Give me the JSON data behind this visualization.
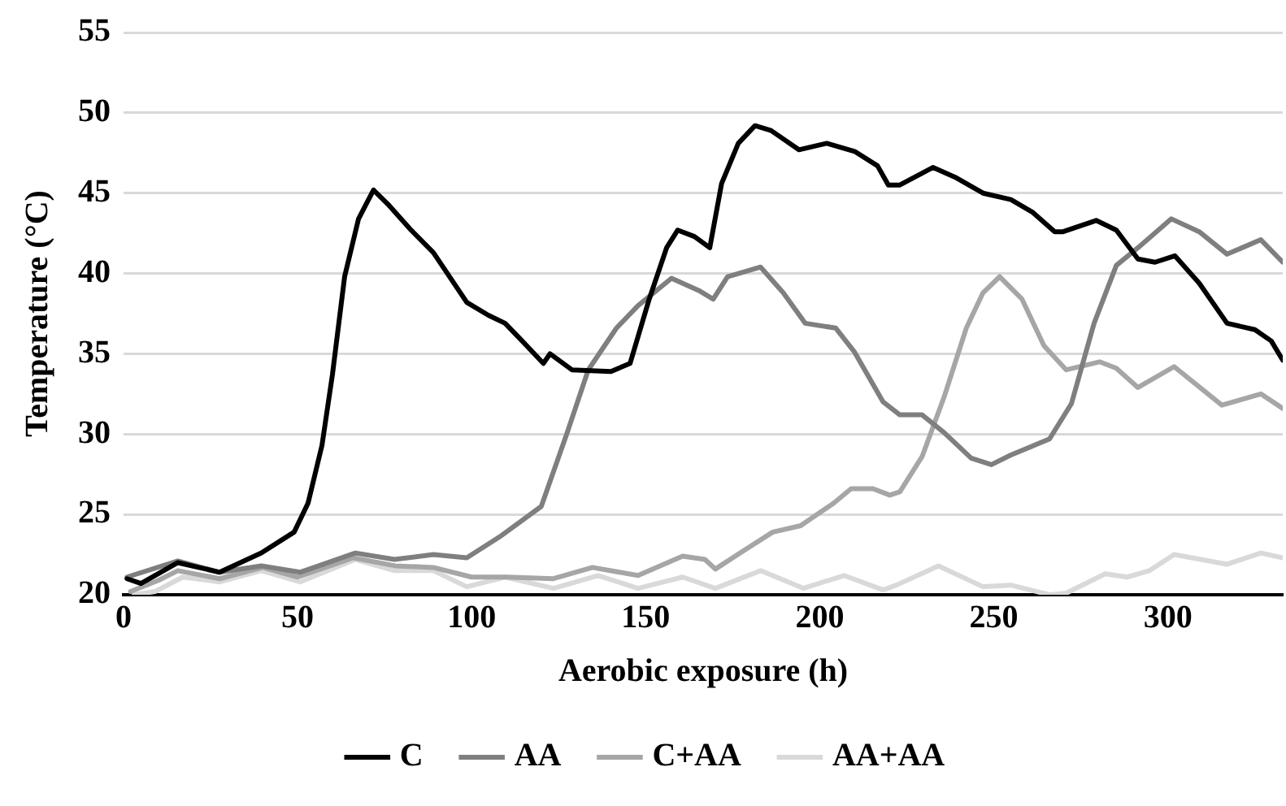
{
  "chart_data": {
    "type": "line",
    "xlabel": "Aerobic exposure (h)",
    "ylabel": "Temperature (°C)",
    "xlim": [
      0,
      333
    ],
    "xticks": [
      0,
      50,
      100,
      150,
      200,
      250,
      300
    ],
    "ylim": [
      20,
      55
    ],
    "yticks": [
      20,
      25,
      30,
      35,
      40,
      45,
      50,
      55
    ],
    "grid": "y",
    "legend": "bottom",
    "marker": "none",
    "line_style": "solid",
    "series": [
      {
        "name": "C",
        "color": "#000000",
        "x": [
          1,
          5,
          15.6,
          27.6,
          39.6,
          49,
          53,
          57,
          60,
          63.5,
          67.5,
          71.8,
          76,
          82.6,
          89,
          98.6,
          104.8,
          109.6,
          114.5,
          120.6,
          122.5,
          128.8,
          140,
          145.5,
          151,
          156,
          159.2,
          164,
          168.4,
          171.8,
          176.6,
          181.4,
          186,
          194,
          202,
          210,
          216.6,
          219.7,
          222.9,
          232.5,
          238.8,
          246.9,
          254.9,
          261.2,
          267.5,
          269.9,
          279.4,
          285.2,
          291.4,
          296.3,
          302,
          309,
          317,
          325,
          329.7,
          333
        ],
        "values": [
          21,
          20.7,
          22,
          21.4,
          22.6,
          23.9,
          25.7,
          29.3,
          33.7,
          39.8,
          43.4,
          45.2,
          44.3,
          42.7,
          41.3,
          38.2,
          37.4,
          36.9,
          35.8,
          34.4,
          35,
          34,
          33.9,
          34.4,
          38.4,
          41.6,
          42.7,
          42.3,
          41.6,
          45.6,
          48.1,
          49.2,
          48.9,
          47.7,
          48.1,
          47.6,
          46.7,
          45.5,
          45.5,
          46.6,
          46,
          45,
          44.6,
          43.8,
          42.6,
          42.6,
          43.3,
          42.7,
          40.9,
          40.7,
          41.1,
          39.4,
          36.9,
          36.5,
          35.8,
          34.6
        ]
      },
      {
        "name": "AA",
        "color": "#7f7f7f",
        "x": [
          1,
          15.6,
          27.6,
          39.6,
          50.7,
          66.6,
          77.8,
          89,
          98.6,
          108,
          120,
          127.3,
          133.5,
          141.6,
          147.8,
          157.4,
          165.6,
          169.4,
          173.5,
          183,
          189.5,
          195.8,
          204.6,
          210,
          218.2,
          223,
          229.4,
          235.7,
          243.5,
          249.3,
          254.9,
          266,
          272.3,
          278.8,
          285.2,
          291.4,
          301,
          309,
          317,
          326.7,
          333
        ],
        "values": [
          21.1,
          22.1,
          21.4,
          21.8,
          21.4,
          22.6,
          22.2,
          22.5,
          22.3,
          23.6,
          25.5,
          30,
          34,
          36.6,
          38,
          39.7,
          38.9,
          38.4,
          39.8,
          40.4,
          38.8,
          36.9,
          36.6,
          35.1,
          32,
          31.2,
          31.2,
          30.1,
          28.5,
          28.1,
          28.7,
          29.7,
          31.9,
          36.9,
          40.5,
          41.6,
          43.4,
          42.6,
          41.2,
          42.1,
          40.7
        ]
      },
      {
        "name": "C+AA",
        "color": "#a6a6a6",
        "x": [
          2,
          10,
          15.6,
          27.6,
          40,
          50,
          66,
          78,
          89,
          100,
          110,
          123.5,
          134.7,
          147.8,
          160.6,
          167,
          170,
          178.5,
          186.5,
          194.5,
          204,
          209,
          215.3,
          220.1,
          223,
          229.4,
          235.7,
          242.1,
          246.9,
          251.7,
          258.1,
          264.4,
          270.8,
          280.4,
          285.2,
          291.4,
          301.8,
          315.5,
          326.7,
          333
        ],
        "values": [
          20.2,
          20.9,
          21.5,
          21,
          21.7,
          21.1,
          22.3,
          21.8,
          21.7,
          21.1,
          21.1,
          21,
          21.7,
          21.2,
          22.4,
          22.2,
          21.6,
          22.8,
          23.9,
          24.3,
          25.7,
          26.6,
          26.6,
          26.2,
          26.4,
          28.6,
          32.3,
          36.6,
          38.8,
          39.8,
          38.4,
          35.5,
          34,
          34.5,
          34.1,
          32.9,
          34.2,
          31.8,
          32.5,
          31.6
        ]
      },
      {
        "name": "AA+AA",
        "color": "#d9d9d9",
        "x": [
          3,
          9,
          17,
          27.6,
          39.6,
          50.7,
          66.6,
          77.8,
          89,
          98.6,
          109.6,
          123.5,
          136.3,
          147.8,
          160.6,
          170,
          183,
          195.3,
          207,
          218.2,
          222,
          234.1,
          246.9,
          254.9,
          266,
          270.8,
          282,
          288.3,
          294.7,
          301.8,
          317,
          326.7,
          333
        ],
        "values": [
          20,
          20.2,
          21.1,
          20.8,
          21.5,
          20.8,
          22.2,
          21.5,
          21.5,
          20.5,
          21.1,
          20.4,
          21.2,
          20.4,
          21.1,
          20.4,
          21.5,
          20.4,
          21.2,
          20.3,
          20.6,
          21.8,
          20.5,
          20.6,
          20,
          20.1,
          21.3,
          21.1,
          21.5,
          22.5,
          21.9,
          22.6,
          22.3
        ]
      }
    ]
  }
}
